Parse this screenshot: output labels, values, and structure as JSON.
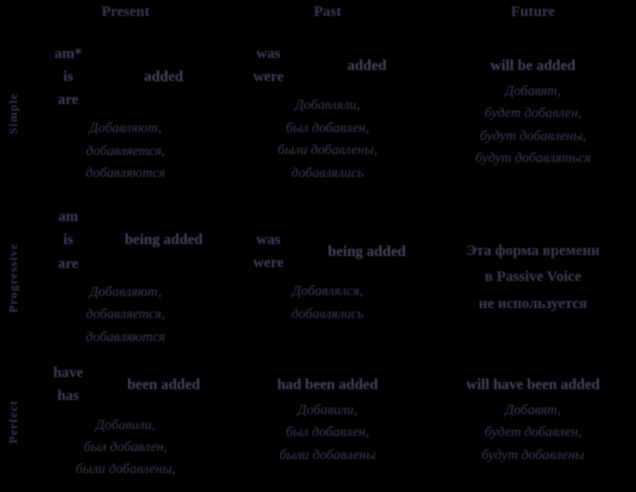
{
  "colors": {
    "background": "#000000",
    "text_primary": "#343a56",
    "text_examples": "#34304c"
  },
  "header": {
    "cols": [
      "Present",
      "Past",
      "Future"
    ]
  },
  "rows": [
    {
      "label": "Simple",
      "cells": [
        {
          "aux": [
            "am*",
            "is",
            "are"
          ],
          "verb": "added",
          "examples": [
            "Добавляют,",
            "добавляется,",
            "добавляются"
          ]
        },
        {
          "aux": [
            "was",
            "were"
          ],
          "verb": "added",
          "examples": [
            "Добавляли,",
            "был добавлен,",
            "были добавлены,",
            "добавлялись"
          ]
        },
        {
          "verb": "will be added",
          "examples": [
            "Добавят,",
            "будет добавлен,",
            "будут добавлены,",
            "будут добавляться"
          ]
        }
      ]
    },
    {
      "label": "Progressive",
      "cells": [
        {
          "aux": [
            "am",
            "is",
            "are"
          ],
          "verb": "being added",
          "examples": [
            "Добавляют,",
            "добавляется,",
            "добавляются"
          ]
        },
        {
          "aux": [
            "was",
            "were"
          ],
          "verb": "being added",
          "examples": [
            "Добавлялся,",
            "добавлялись"
          ]
        },
        {
          "note_lines": [
            "Эта форма времени",
            "в Passive Voice",
            "не используется"
          ]
        }
      ]
    },
    {
      "label": "Perfect",
      "cells": [
        {
          "aux": [
            "have",
            "has"
          ],
          "verb": "been added",
          "examples": [
            "Добавили,",
            "был добавлен,",
            "были добавлены,"
          ]
        },
        {
          "verb": "had been added",
          "examples": [
            "Добавили,",
            "был добавлен,",
            "были добавлены"
          ]
        },
        {
          "verb": "will have been added",
          "examples": [
            "Добавят,",
            "будет добавлен,",
            "будут добавлены"
          ]
        }
      ]
    }
  ]
}
